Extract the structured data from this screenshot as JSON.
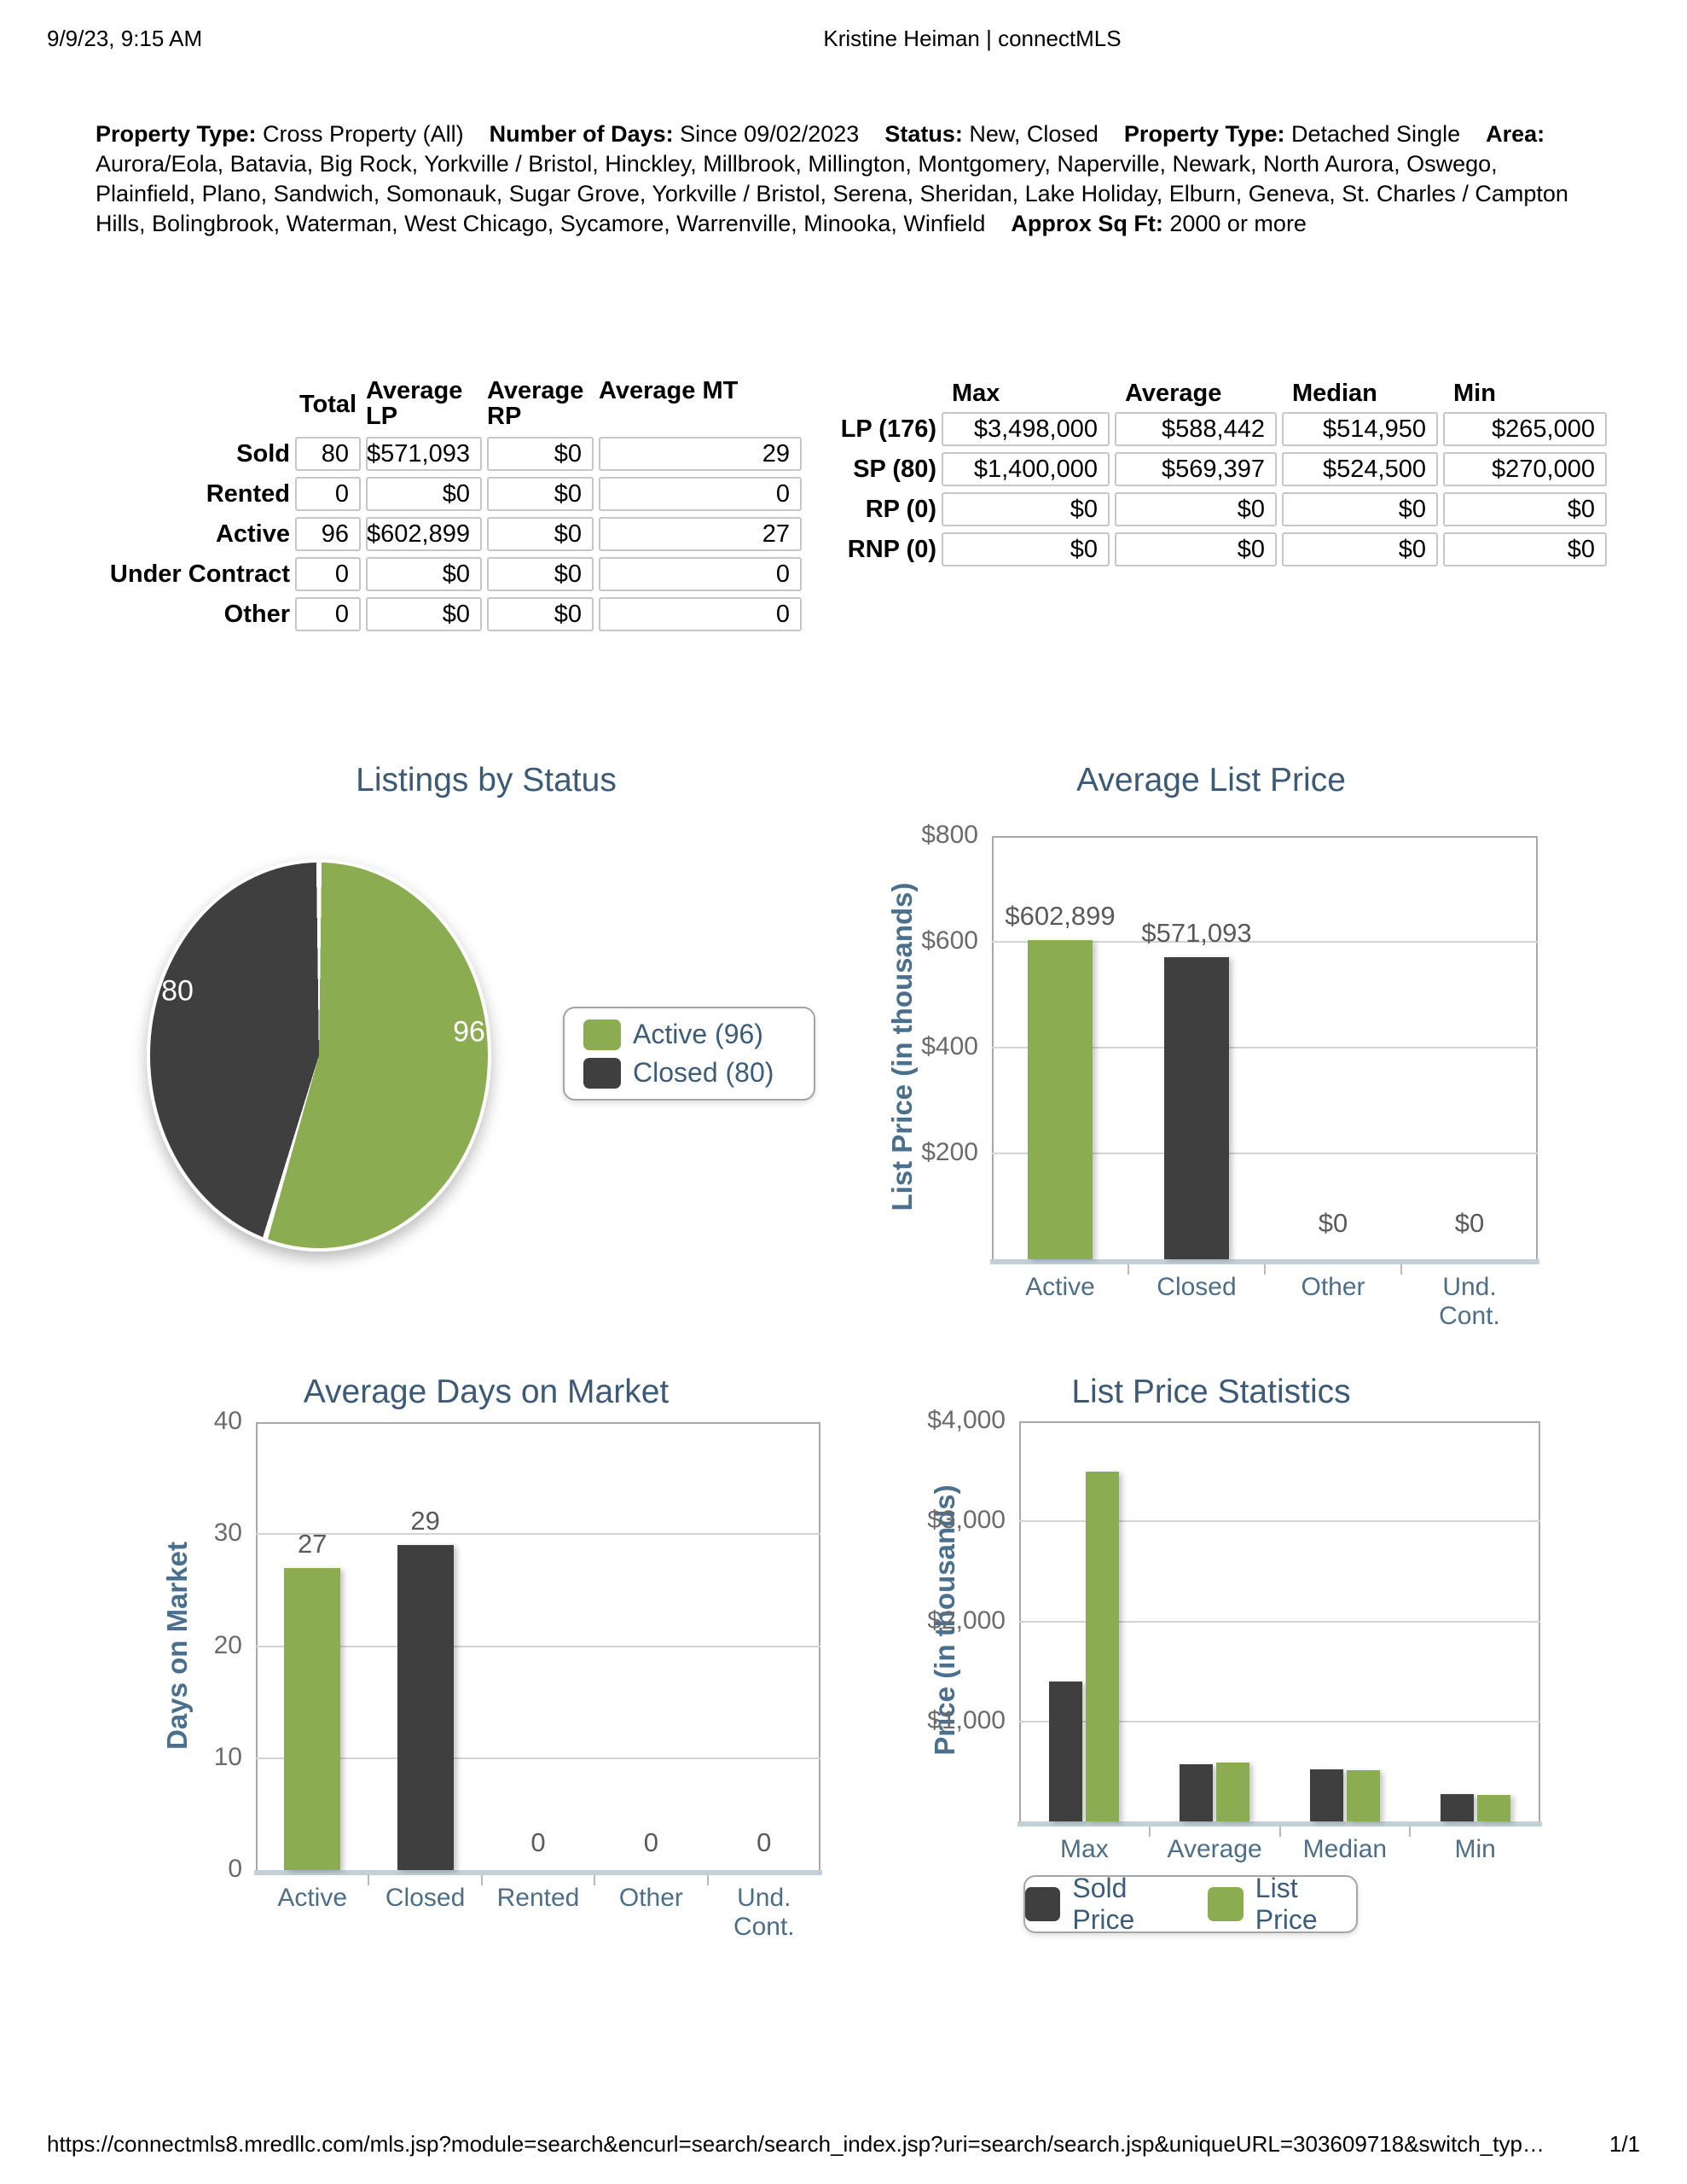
{
  "page": {
    "printed_at": "9/9/23, 9:15 AM",
    "header_center": "Kristine Heiman | connectMLS",
    "footer_url": "https://connectmls8.mredllc.com/mls.jsp?module=search&encurl=search/search_index.jsp?uri=search/search.jsp&uniqueURL=303609718&switch_typ…",
    "footer_page": "1/1"
  },
  "criteria": [
    {
      "label": "Property Type:",
      "value": "Cross Property (All)"
    },
    {
      "label": "Number of Days:",
      "value": "Since 09/02/2023"
    },
    {
      "label": "Status:",
      "value": "New, Closed"
    },
    {
      "label": "Property Type:",
      "value": "Detached Single"
    },
    {
      "label": "Area:",
      "value": "Aurora/Eola, Batavia, Big Rock, Yorkville / Bristol, Hinckley, Millbrook, Millington, Montgomery, Naperville, Newark, North Aurora, Oswego, Plainfield, Plano, Sandwich, Somonauk, Sugar Grove, Yorkville / Bristol, Serena, Sheridan, Lake Holiday, Elburn, Geneva, St. Charles / Campton Hills, Bolingbrook, Waterman, West Chicago, Sycamore, Warrenville, Minooka, Winfield"
    },
    {
      "label": "Approx Sq Ft:",
      "value": "2000 or more"
    }
  ],
  "summary_table": {
    "columns": [
      "Total",
      "Average LP",
      "Average RP",
      "Average MT"
    ],
    "rows": [
      {
        "label": "Sold",
        "cells": [
          "80",
          "$571,093",
          "$0",
          "29"
        ]
      },
      {
        "label": "Rented",
        "cells": [
          "0",
          "$0",
          "$0",
          "0"
        ]
      },
      {
        "label": "Active",
        "cells": [
          "96",
          "$602,899",
          "$0",
          "27"
        ]
      },
      {
        "label": "Under Contract",
        "cells": [
          "0",
          "$0",
          "$0",
          "0"
        ]
      },
      {
        "label": "Other",
        "cells": [
          "0",
          "$0",
          "$0",
          "0"
        ]
      }
    ]
  },
  "stats_table": {
    "columns": [
      "Max",
      "Average",
      "Median",
      "Min"
    ],
    "rows": [
      {
        "label": "LP (176)",
        "cells": [
          "$3,498,000",
          "$588,442",
          "$514,950",
          "$265,000"
        ]
      },
      {
        "label": "SP (80)",
        "cells": [
          "$1,400,000",
          "$569,397",
          "$524,500",
          "$270,000"
        ]
      },
      {
        "label": "RP (0)",
        "cells": [
          "$0",
          "$0",
          "$0",
          "$0"
        ]
      },
      {
        "label": "RNP (0)",
        "cells": [
          "$0",
          "$0",
          "$0",
          "$0"
        ]
      }
    ]
  },
  "colors": {
    "green": "#8cac51",
    "dark": "#3f3f3f",
    "slate_title": "#3c5a76",
    "slate_axis": "#4a708e",
    "tick_gray": "#6b6b6b"
  },
  "chart_data": [
    {
      "type": "pie",
      "title": "Listings by Status",
      "total": 176,
      "legend_position": "right",
      "slices": [
        {
          "name": "Active",
          "value": 96,
          "color": "#8cac51",
          "legend_label": "Active (96)",
          "data_label": "96"
        },
        {
          "name": "Closed",
          "value": 80,
          "color": "#3f3f3f",
          "legend_label": "Closed (80)",
          "data_label": "80"
        }
      ]
    },
    {
      "type": "bar",
      "title": "Average List Price",
      "ylabel": "List Price (in thousands)",
      "categories": [
        "Active",
        "Closed",
        "Other",
        "Und. Cont."
      ],
      "values": [
        602.899,
        571.093,
        0,
        0
      ],
      "value_labels": [
        "$602,899",
        "$571,093",
        "$0",
        "$0"
      ],
      "bar_colors": [
        "#8cac51",
        "#3f3f3f",
        null,
        null
      ],
      "ylim": [
        0,
        800
      ],
      "grid": true,
      "yticks": [
        {
          "label": "$800",
          "value": 800
        },
        {
          "label": "$600",
          "value": 600
        },
        {
          "label": "$400",
          "value": 400
        },
        {
          "label": "$200",
          "value": 200
        }
      ]
    },
    {
      "type": "bar",
      "title": "Average Days on Market",
      "ylabel": "Days on Market",
      "categories": [
        "Active",
        "Closed",
        "Rented",
        "Other",
        "Und. Cont."
      ],
      "values": [
        27,
        29,
        0,
        0,
        0
      ],
      "value_labels": [
        "27",
        "29",
        "0",
        "0",
        "0"
      ],
      "bar_colors": [
        "#8cac51",
        "#3f3f3f",
        null,
        null,
        null
      ],
      "ylim": [
        0,
        40
      ],
      "grid": true,
      "yticks": [
        {
          "label": "40",
          "value": 40
        },
        {
          "label": "30",
          "value": 30
        },
        {
          "label": "20",
          "value": 20
        },
        {
          "label": "10",
          "value": 10
        },
        {
          "label": "0",
          "value": 0
        }
      ]
    },
    {
      "type": "bar",
      "title": "List Price Statistics",
      "ylabel": "Price (in thousands)",
      "categories": [
        "Max",
        "Average",
        "Median",
        "Min"
      ],
      "series": [
        {
          "name": "Sold Price",
          "color": "#3f3f3f",
          "values": [
            1400,
            569.397,
            524.5,
            270
          ]
        },
        {
          "name": "List Price",
          "color": "#8cac51",
          "values": [
            3498,
            588.442,
            514.95,
            265
          ]
        }
      ],
      "ylim": [
        0,
        4000
      ],
      "grid": true,
      "legend_position": "bottom",
      "yticks": [
        {
          "label": "$4,000",
          "value": 4000
        },
        {
          "label": "$3,000",
          "value": 3000
        },
        {
          "label": "$2,000",
          "value": 2000
        },
        {
          "label": "$1,000",
          "value": 1000
        }
      ]
    }
  ]
}
